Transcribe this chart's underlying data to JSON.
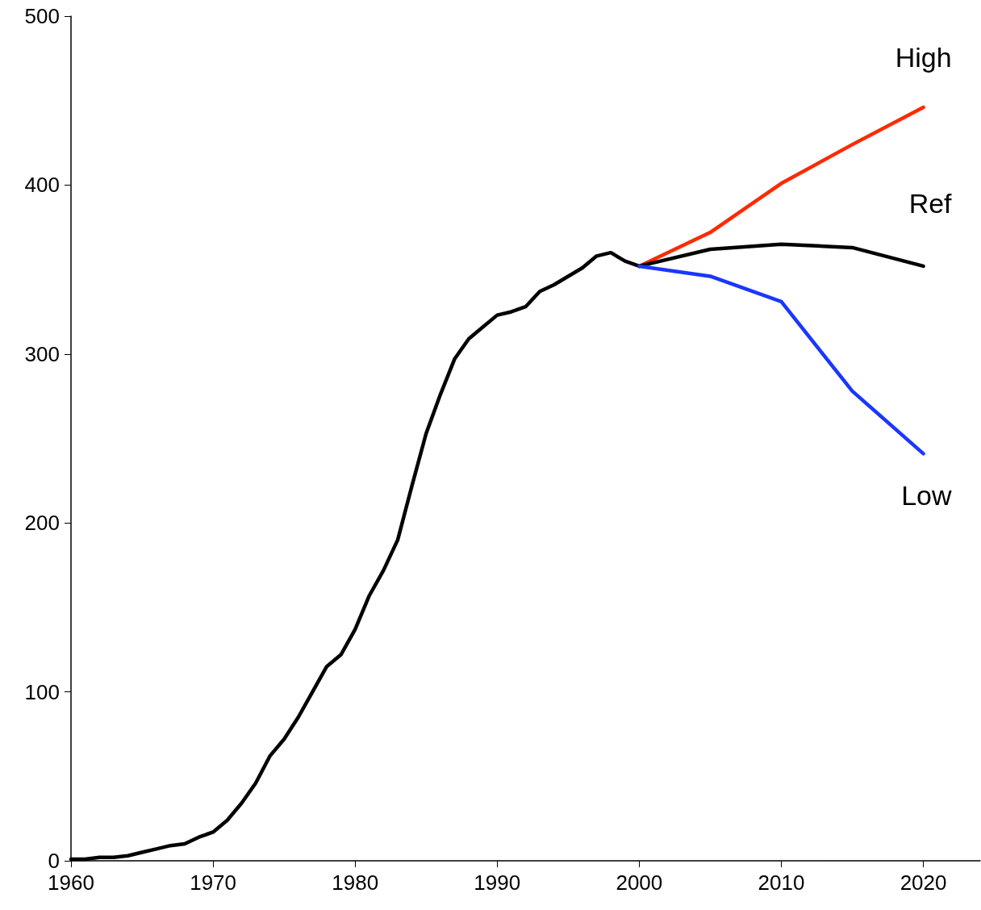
{
  "chart_data": {
    "type": "line",
    "xlim": [
      1960,
      2024
    ],
    "xticks": [
      1960,
      1970,
      1980,
      1990,
      2000,
      2010,
      2020
    ],
    "ylim": [
      0,
      500
    ],
    "yticks": [
      0,
      100,
      200,
      300,
      400,
      500
    ],
    "grid": false,
    "legend": false,
    "marker": "none",
    "line_style": "solid",
    "series": [
      {
        "color": "#000000",
        "x": [
          1960,
          1961,
          1962,
          1963,
          1964,
          1965,
          1966,
          1967,
          1968,
          1969,
          1970,
          1971,
          1972,
          1973,
          1974,
          1975,
          1976,
          1977,
          1978,
          1979,
          1980,
          1981,
          1982,
          1983,
          1984,
          1985,
          1986,
          1987,
          1988,
          1989,
          1990,
          1991,
          1992,
          1993,
          1994,
          1995,
          1996,
          1997,
          1998,
          1999,
          2000
        ],
        "values": [
          1,
          1,
          2,
          2,
          3,
          5,
          7,
          9,
          10,
          14,
          17,
          24,
          34,
          46,
          62,
          72,
          85,
          100,
          115,
          122,
          137,
          157,
          172,
          190,
          222,
          253,
          276,
          297,
          309,
          316,
          323,
          325,
          328,
          337,
          341,
          346,
          351,
          358,
          360,
          355,
          352
        ]
      },
      {
        "name": "High",
        "color": "#ff2a00",
        "x": [
          2000,
          2005,
          2010,
          2015,
          2020
        ],
        "values": [
          352,
          372,
          401,
          424,
          446
        ]
      },
      {
        "name": "Ref",
        "color": "#000000",
        "x": [
          2000,
          2005,
          2010,
          2015,
          2020
        ],
        "values": [
          352,
          362,
          365,
          363,
          352
        ]
      },
      {
        "name": "Low",
        "color": "#1a37ff",
        "x": [
          2000,
          2005,
          2010,
          2015,
          2020
        ],
        "values": [
          352,
          346,
          331,
          278,
          241
        ]
      }
    ]
  }
}
